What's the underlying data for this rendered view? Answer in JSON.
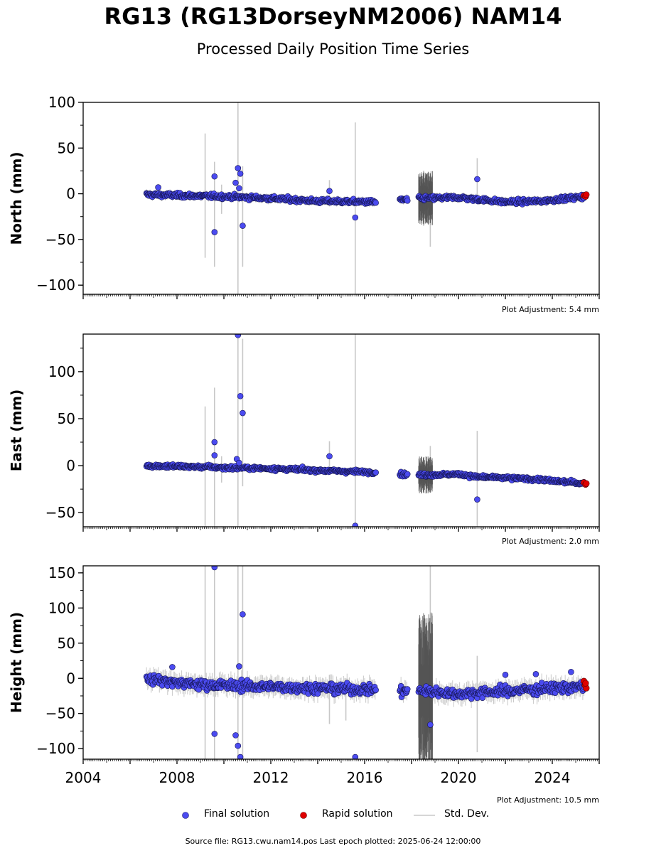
{
  "title": "RG13 (RG13DorseyNM2006) NAM14",
  "subtitle": "Processed Daily Position Time Series",
  "footer": "Source file: RG13.cwu.nam14.pos  Last epoch plotted: 2025-06-24 12:00:00",
  "legend": {
    "final": "Final solution",
    "rapid": "Rapid solution",
    "stddev": "Std. Dev."
  },
  "colors": {
    "final": "#4b4bf0",
    "rapid": "#e00000",
    "stddev": "#c8c8c8",
    "noisy_stddev": "#555555"
  },
  "chart_data": [
    {
      "type": "scatter",
      "ylabel": "North (mm)",
      "xlim": [
        2004,
        2026
      ],
      "ylim": [
        -110,
        100
      ],
      "yticks": [
        -100,
        -50,
        0,
        50,
        100
      ],
      "adjustment": "Plot Adjustment: 5.4 mm",
      "trend": [
        [
          2006.7,
          -1
        ],
        [
          2008.5,
          -2
        ],
        [
          2010,
          -3
        ],
        [
          2012,
          -5
        ],
        [
          2014,
          -8
        ],
        [
          2016.5,
          -9
        ],
        [
          2017.5,
          -7
        ],
        [
          2018.5,
          -5
        ],
        [
          2020,
          -4
        ],
        [
          2022,
          -9
        ],
        [
          2023.5,
          -8
        ],
        [
          2025.4,
          -3
        ]
      ],
      "gaps": [
        [
          2016.5,
          2017.5
        ],
        [
          2017.85,
          2018.3
        ]
      ],
      "scatter": 2,
      "outliers": [
        [
          2009.6,
          19
        ],
        [
          2009.6,
          -42
        ],
        [
          2010.5,
          12
        ],
        [
          2010.6,
          28
        ],
        [
          2010.7,
          22
        ],
        [
          2010.65,
          6
        ],
        [
          2010.8,
          -35
        ],
        [
          2014.5,
          3
        ],
        [
          2015.6,
          -26
        ],
        [
          2020.8,
          16
        ],
        [
          2007.2,
          7
        ]
      ],
      "stddev_bars": [
        [
          2009.2,
          -70,
          66
        ],
        [
          2009.6,
          -80,
          35
        ],
        [
          2010.6,
          -110,
          100
        ],
        [
          2010.8,
          -80,
          30
        ],
        [
          2009.9,
          -22,
          10
        ],
        [
          2014.5,
          -10,
          15
        ],
        [
          2015.6,
          -110,
          78
        ],
        [
          2018.8,
          -58,
          20
        ],
        [
          2020.8,
          -5,
          39
        ]
      ],
      "noisy": {
        "x0": 2018.3,
        "x1": 2018.9,
        "amp": 30
      },
      "rapid": [
        [
          2025.35,
          -2
        ],
        [
          2025.42,
          -3
        ],
        [
          2025.45,
          -1
        ]
      ],
      "xticklabels": false
    },
    {
      "type": "scatter",
      "ylabel": "East (mm)",
      "xlim": [
        2004,
        2026
      ],
      "ylim": [
        -65,
        140
      ],
      "yticks": [
        -50,
        0,
        50,
        100
      ],
      "adjustment": "Plot Adjustment: 2.0 mm",
      "trend": [
        [
          2006.7,
          0
        ],
        [
          2008.5,
          -1
        ],
        [
          2010,
          -2
        ],
        [
          2012,
          -3
        ],
        [
          2014,
          -5
        ],
        [
          2016.5,
          -7
        ],
        [
          2017.5,
          -9
        ],
        [
          2018.5,
          -10
        ],
        [
          2020,
          -9
        ],
        [
          2020.8,
          -12
        ],
        [
          2023,
          -14
        ],
        [
          2025.4,
          -19
        ]
      ],
      "gaps": [
        [
          2016.5,
          2017.5
        ],
        [
          2017.85,
          2018.3
        ]
      ],
      "scatter": 1.6,
      "outliers": [
        [
          2009.6,
          25
        ],
        [
          2009.6,
          11
        ],
        [
          2010.55,
          7
        ],
        [
          2010.6,
          139
        ],
        [
          2010.7,
          74
        ],
        [
          2010.8,
          56
        ],
        [
          2010.65,
          3
        ],
        [
          2014.5,
          10
        ],
        [
          2015.6,
          -64
        ],
        [
          2020.8,
          -36
        ]
      ],
      "stddev_bars": [
        [
          2009.2,
          -65,
          63
        ],
        [
          2009.6,
          -65,
          83
        ],
        [
          2010.6,
          -65,
          140
        ],
        [
          2010.8,
          -22,
          135
        ],
        [
          2009.9,
          -18,
          10
        ],
        [
          2014.5,
          -5,
          26
        ],
        [
          2015.6,
          -65,
          140
        ],
        [
          2018.8,
          -22,
          21
        ],
        [
          2020.8,
          -65,
          37
        ]
      ],
      "noisy": {
        "x0": 2018.3,
        "x1": 2018.9,
        "amp": 20
      },
      "rapid": [
        [
          2025.35,
          -18
        ],
        [
          2025.42,
          -20
        ],
        [
          2025.45,
          -19
        ]
      ],
      "xticklabels": false
    },
    {
      "type": "scatter",
      "ylabel": "Height (mm)",
      "xlim": [
        2004,
        2026
      ],
      "ylim": [
        -115,
        160
      ],
      "yticks": [
        -100,
        -50,
        0,
        50,
        100,
        150
      ],
      "xticks": [
        2004,
        2008,
        2012,
        2016,
        2020,
        2024
      ],
      "adjustment": "Plot Adjustment: 10.5 mm",
      "trend": [
        [
          2006.7,
          0
        ],
        [
          2008.5,
          -8
        ],
        [
          2010,
          -10
        ],
        [
          2012,
          -12
        ],
        [
          2014,
          -14
        ],
        [
          2016.5,
          -16
        ],
        [
          2017.5,
          -18
        ],
        [
          2018.5,
          -18
        ],
        [
          2020,
          -22
        ],
        [
          2022,
          -18
        ],
        [
          2024,
          -14
        ],
        [
          2025.4,
          -12
        ]
      ],
      "gaps": [
        [
          2016.5,
          2017.5
        ],
        [
          2017.85,
          2018.3
        ]
      ],
      "scatter": 6,
      "outliers": [
        [
          2009.6,
          158
        ],
        [
          2009.6,
          -79
        ],
        [
          2010.5,
          -81
        ],
        [
          2010.6,
          -96
        ],
        [
          2010.65,
          17
        ],
        [
          2010.7,
          -112
        ],
        [
          2010.8,
          91
        ],
        [
          2015.6,
          -112
        ],
        [
          2018.8,
          -66
        ],
        [
          2022,
          5
        ],
        [
          2023.3,
          6
        ],
        [
          2024.8,
          9
        ],
        [
          2007.8,
          16
        ]
      ],
      "stddev_bars": [
        [
          2009.2,
          -115,
          160
        ],
        [
          2009.6,
          -115,
          160
        ],
        [
          2010.6,
          -115,
          160
        ],
        [
          2010.8,
          -115,
          160
        ],
        [
          2014.5,
          -65,
          5
        ],
        [
          2015.2,
          -60,
          0
        ],
        [
          2018.8,
          -115,
          160
        ],
        [
          2020.8,
          -105,
          32
        ]
      ],
      "noisy": {
        "x0": 2018.3,
        "x1": 2018.9,
        "amp": 115
      },
      "rapid": [
        [
          2025.35,
          -4
        ],
        [
          2025.4,
          -10
        ],
        [
          2025.45,
          -14
        ],
        [
          2025.42,
          -7
        ]
      ],
      "xticklabels": true
    }
  ]
}
